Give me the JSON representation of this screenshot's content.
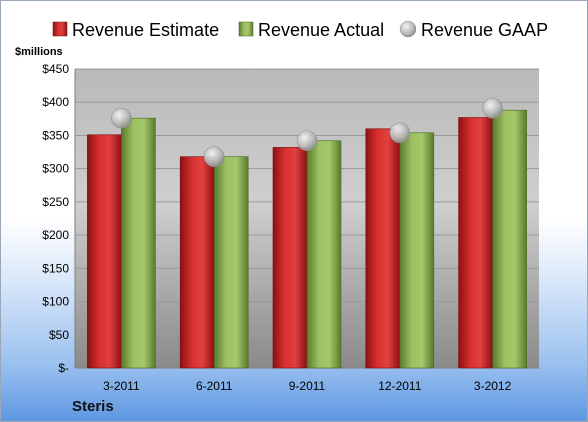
{
  "chart_data": {
    "type": "bar",
    "unit_label": "$millions",
    "categories": [
      "3-2011",
      "6-2011",
      "9-2011",
      "12-2011",
      "3-2012"
    ],
    "series": [
      {
        "name": "Revenue Estimate",
        "type": "bar",
        "color": "#d42a2a",
        "values": [
          351,
          318,
          332,
          360,
          377
        ]
      },
      {
        "name": "Revenue Actual",
        "type": "bar",
        "color": "#8fb353",
        "values": [
          376,
          318,
          342,
          354,
          388
        ]
      },
      {
        "name": "Revenue GAAP",
        "type": "scatter",
        "color": "#b8b8b8",
        "values": [
          376,
          318,
          342,
          354,
          391
        ]
      }
    ],
    "ylim": [
      0,
      450
    ],
    "yticks": [
      0,
      50,
      100,
      150,
      200,
      250,
      300,
      350,
      400,
      450
    ],
    "ytick_labels": [
      "$-",
      "$50",
      "$100",
      "$150",
      "$200",
      "$250",
      "$300",
      "$350",
      "$400",
      "$450"
    ],
    "grid": true,
    "legend_position": "top"
  },
  "footer": {
    "company": "Steris"
  }
}
